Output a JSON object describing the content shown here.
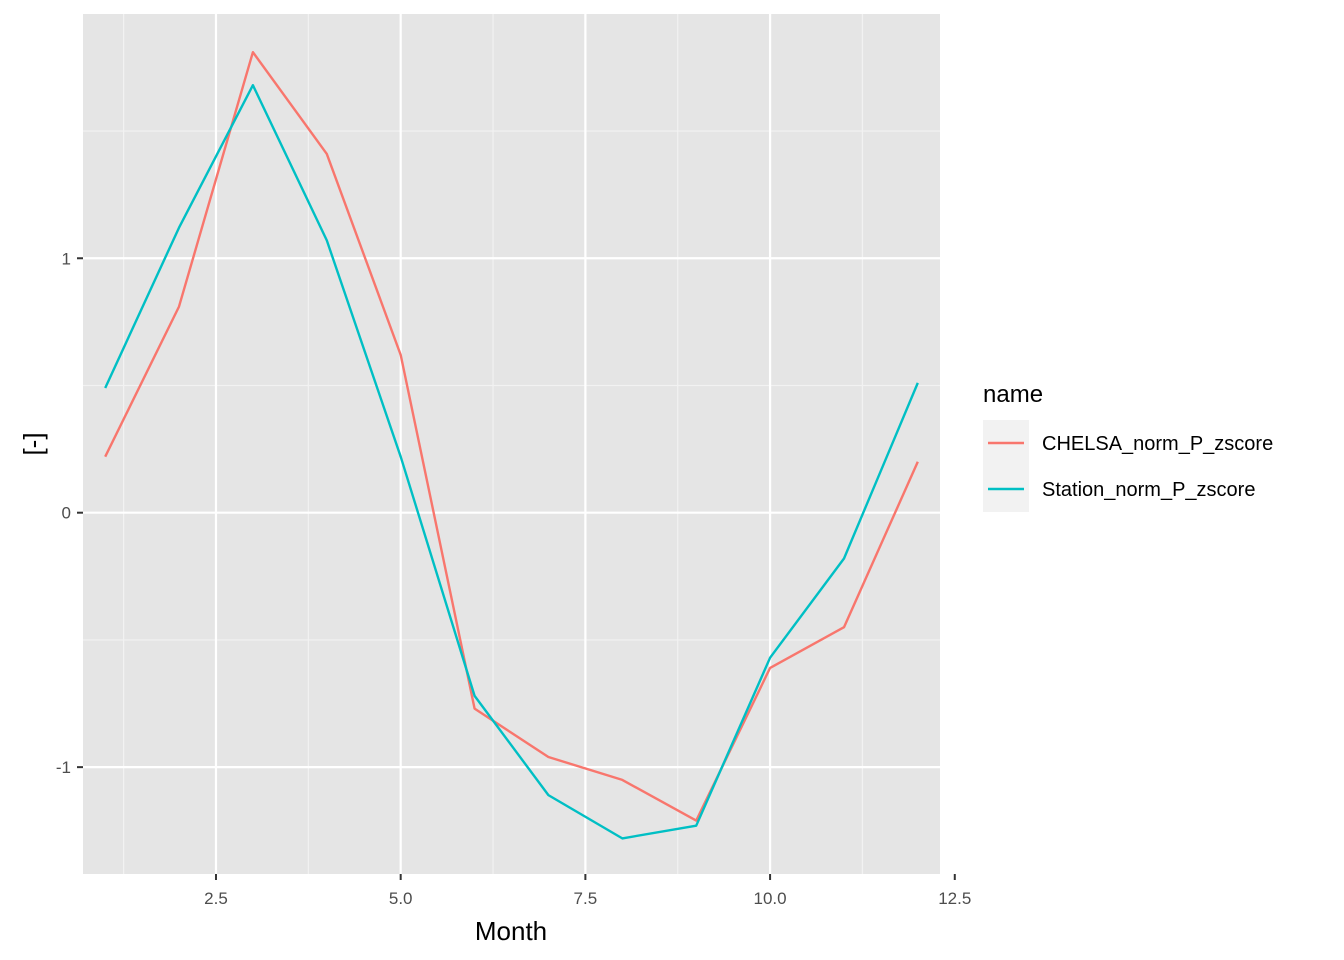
{
  "chart_data": {
    "type": "line",
    "title": "",
    "xlabel": "Month",
    "ylabel": "[-]",
    "xlim": [
      0.7,
      12.3
    ],
    "ylim": [
      -1.42,
      1.96
    ],
    "x_ticks": [
      2.5,
      5.0,
      7.5,
      10.0,
      12.5
    ],
    "x_tick_labels": [
      "2.5",
      "5.0",
      "7.5",
      "10.0",
      "12.5"
    ],
    "y_ticks": [
      -1,
      0,
      1
    ],
    "y_tick_labels": [
      "-1",
      "0",
      "1"
    ],
    "grid": true,
    "legend": {
      "title": "name",
      "position": "right"
    },
    "x": [
      1,
      2,
      3,
      4,
      5,
      6,
      7,
      8,
      9,
      10,
      11,
      12
    ],
    "series": [
      {
        "name": "CHELSA_norm_P_zscore",
        "color": "#F8766D",
        "values": [
          0.22,
          0.81,
          1.81,
          1.41,
          0.62,
          -0.77,
          -0.96,
          -1.05,
          -1.21,
          -0.61,
          -0.45,
          0.2
        ]
      },
      {
        "name": "Station_norm_P_zscore",
        "color": "#00BFC4",
        "values": [
          0.49,
          1.12,
          1.68,
          1.07,
          0.22,
          -0.72,
          -1.11,
          -1.28,
          -1.23,
          -0.57,
          -0.18,
          0.51
        ]
      }
    ]
  }
}
